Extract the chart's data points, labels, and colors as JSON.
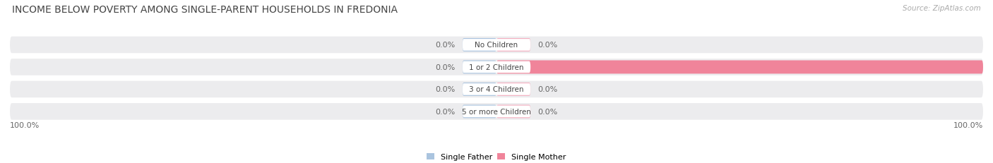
{
  "title": "INCOME BELOW POVERTY AMONG SINGLE-PARENT HOUSEHOLDS IN FREDONIA",
  "source": "Source: ZipAtlas.com",
  "categories": [
    "No Children",
    "1 or 2 Children",
    "3 or 4 Children",
    "5 or more Children"
  ],
  "single_father": [
    0.0,
    0.0,
    0.0,
    0.0
  ],
  "single_mother": [
    0.0,
    100.0,
    0.0,
    0.0
  ],
  "father_color": "#aac4df",
  "mother_color": "#f0849a",
  "mother_color_stub": "#f5afc0",
  "bar_bg_color": "#ececee",
  "title_fontsize": 10,
  "label_fontsize": 8,
  "tick_fontsize": 8,
  "source_fontsize": 7.5,
  "legend_father": "Single Father",
  "legend_mother": "Single Mother",
  "background_color": "#ffffff",
  "bottom_left_label": "100.0%",
  "bottom_right_label": "100.0%",
  "center_label_color": "#ffffff",
  "value_color": "#666666"
}
